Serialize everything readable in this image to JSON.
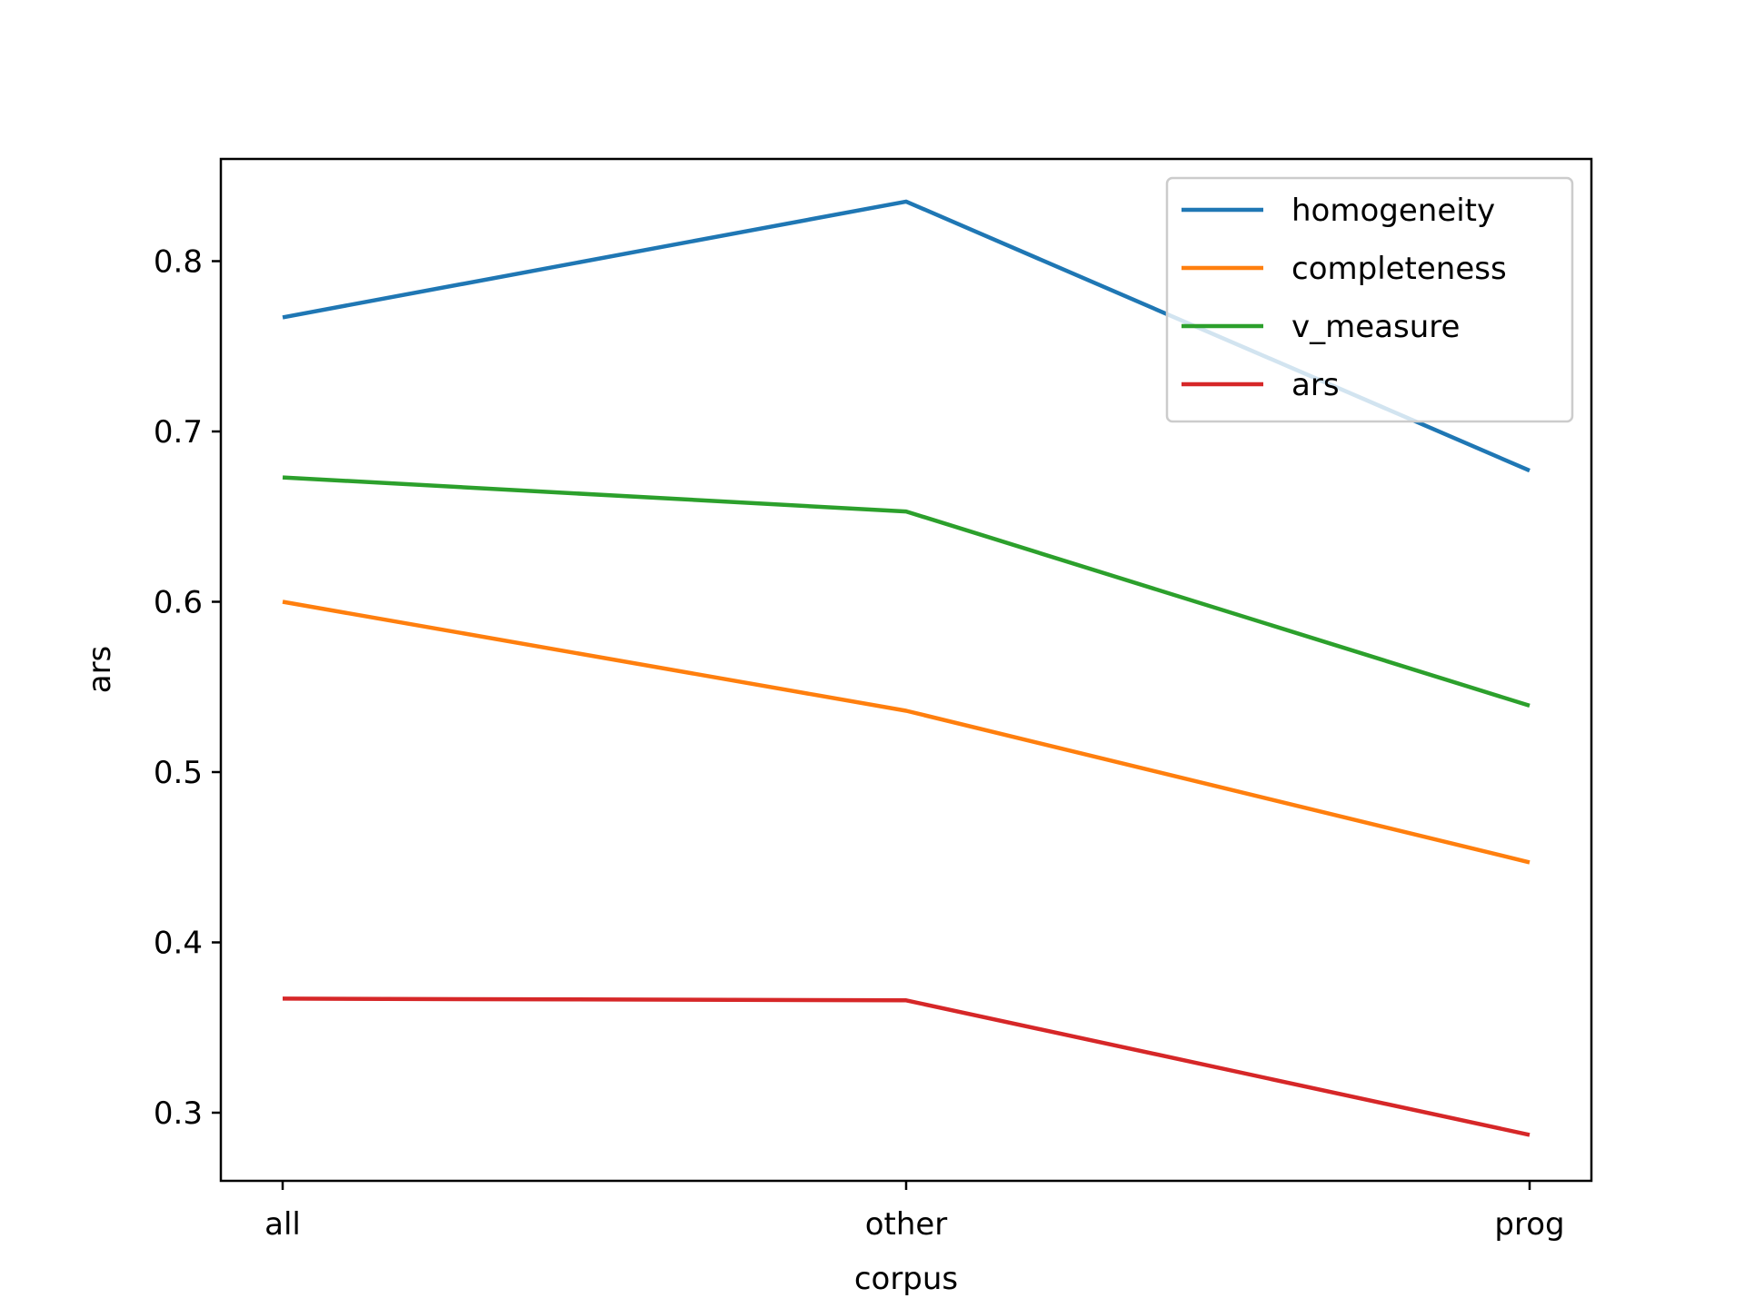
{
  "chart_data": {
    "type": "line",
    "title": "",
    "xlabel": "corpus",
    "ylabel": "ars",
    "categories": [
      "all",
      "other",
      "prog"
    ],
    "ylim": [
      0.26,
      0.86
    ],
    "yticks": [
      "0.3",
      "0.4",
      "0.5",
      "0.6",
      "0.7",
      "0.8"
    ],
    "legend_position": "top-right",
    "grid": false,
    "series": [
      {
        "name": "homogeneity",
        "values": [
          0.767,
          0.835,
          0.677
        ],
        "color": "#1f77b4"
      },
      {
        "name": "completeness",
        "values": [
          0.6,
          0.536,
          0.447
        ],
        "color": "#ff7f0e"
      },
      {
        "name": "v_measure",
        "values": [
          0.673,
          0.653,
          0.539
        ],
        "color": "#2ca02c"
      },
      {
        "name": "ars",
        "values": [
          0.367,
          0.366,
          0.287
        ],
        "color": "#d62728"
      }
    ]
  }
}
